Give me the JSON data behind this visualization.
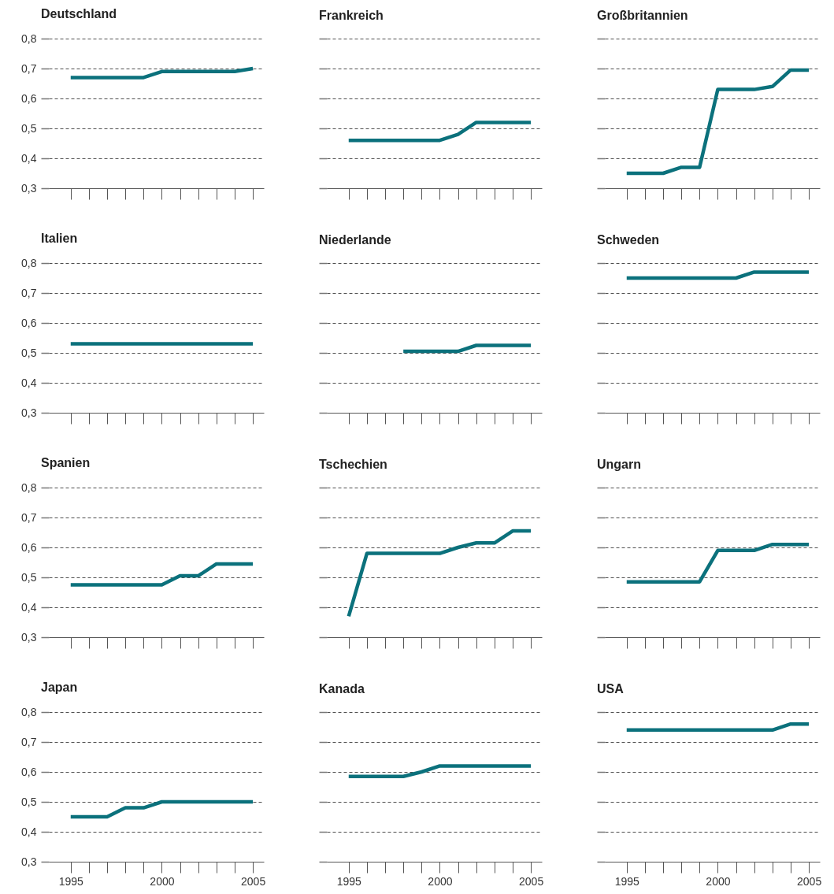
{
  "chart_data": [
    {
      "type": "line",
      "title": "Deutschland",
      "x": [
        1995,
        1996,
        1997,
        1998,
        1999,
        2000,
        2001,
        2002,
        2003,
        2004,
        2005
      ],
      "series": [
        {
          "color": "#0b717c",
          "values": [
            0.67,
            0.67,
            0.67,
            0.67,
            0.67,
            0.69,
            0.69,
            0.69,
            0.69,
            0.69,
            0.7
          ]
        }
      ],
      "xlim": [
        1993.8,
        2005.6
      ],
      "xticks": [
        1995,
        {
          "value": 1996,
          "label": null
        },
        {
          "value": 1997,
          "label": null
        },
        {
          "value": 1998,
          "label": null
        },
        {
          "value": 1999,
          "label": null
        },
        2000,
        {
          "value": 2001,
          "label": null
        },
        {
          "value": 2002,
          "label": null
        },
        {
          "value": 2003,
          "label": null
        },
        {
          "value": 2004,
          "label": null
        },
        2005
      ],
      "ylim": [
        0.3,
        0.8
      ],
      "yticks": [
        {
          "value": 0.3,
          "label": "0,3"
        },
        {
          "value": 0.4,
          "label": "0,4"
        },
        {
          "value": 0.5,
          "label": "0,5"
        },
        {
          "value": 0.6,
          "label": "0,6"
        },
        {
          "value": 0.7,
          "label": "0,7"
        },
        {
          "value": 0.8,
          "label": "0,8"
        }
      ],
      "grid": "y",
      "line_style": "solid",
      "tick_labels": "y"
    },
    {
      "type": "line",
      "title": "Frankreich",
      "x": [
        1995,
        1996,
        1997,
        1998,
        1999,
        2000,
        2001,
        2002,
        2003,
        2004,
        2005
      ],
      "series": [
        {
          "color": "#0b717c",
          "values": [
            0.46,
            0.46,
            0.46,
            0.46,
            0.46,
            0.46,
            0.48,
            0.52,
            0.52,
            0.52,
            0.52
          ]
        }
      ],
      "xlim": [
        1993.8,
        2005.6
      ],
      "xticks": [
        1995,
        {
          "value": 1996,
          "label": null
        },
        {
          "value": 1997,
          "label": null
        },
        {
          "value": 1998,
          "label": null
        },
        {
          "value": 1999,
          "label": null
        },
        2000,
        {
          "value": 2001,
          "label": null
        },
        {
          "value": 2002,
          "label": null
        },
        {
          "value": 2003,
          "label": null
        },
        {
          "value": 2004,
          "label": null
        },
        2005
      ],
      "ylim": [
        0.3,
        0.8
      ],
      "yticks": [
        {
          "value": 0.3,
          "label": null
        },
        {
          "value": 0.4,
          "label": null
        },
        {
          "value": 0.5,
          "label": null
        },
        {
          "value": 0.6,
          "label": null
        },
        {
          "value": 0.7,
          "label": null
        },
        {
          "value": 0.8,
          "label": null
        }
      ],
      "grid": "y",
      "line_style": "solid",
      "tick_labels": false
    },
    {
      "type": "line",
      "title": "Großbritannien",
      "x": [
        1995,
        1996,
        1997,
        1998,
        1999,
        2000,
        2001,
        2002,
        2003,
        2004,
        2005
      ],
      "series": [
        {
          "color": "#0b717c",
          "values": [
            0.35,
            0.35,
            0.35,
            0.37,
            0.37,
            0.63,
            0.63,
            0.63,
            0.64,
            0.695,
            0.695
          ]
        }
      ],
      "xlim": [
        1993.8,
        2005.6
      ],
      "xticks": [
        1995,
        {
          "value": 1996,
          "label": null
        },
        {
          "value": 1997,
          "label": null
        },
        {
          "value": 1998,
          "label": null
        },
        {
          "value": 1999,
          "label": null
        },
        2000,
        {
          "value": 2001,
          "label": null
        },
        {
          "value": 2002,
          "label": null
        },
        {
          "value": 2003,
          "label": null
        },
        {
          "value": 2004,
          "label": null
        },
        2005
      ],
      "ylim": [
        0.3,
        0.8
      ],
      "yticks": [
        {
          "value": 0.3,
          "label": null
        },
        {
          "value": 0.4,
          "label": null
        },
        {
          "value": 0.5,
          "label": null
        },
        {
          "value": 0.6,
          "label": null
        },
        {
          "value": 0.7,
          "label": null
        },
        {
          "value": 0.8,
          "label": null
        }
      ],
      "grid": "y",
      "line_style": "solid",
      "tick_labels": false
    },
    {
      "type": "line",
      "title": "Italien",
      "x": [
        1995,
        1996,
        1997,
        1998,
        1999,
        2000,
        2001,
        2002,
        2003,
        2004,
        2005
      ],
      "series": [
        {
          "color": "#0b717c",
          "values": [
            0.53,
            0.53,
            0.53,
            0.53,
            0.53,
            0.53,
            0.53,
            0.53,
            0.53,
            0.53,
            0.53
          ]
        }
      ],
      "xlim": [
        1993.8,
        2005.6
      ],
      "xticks": [
        1995,
        {
          "value": 1996,
          "label": null
        },
        {
          "value": 1997,
          "label": null
        },
        {
          "value": 1998,
          "label": null
        },
        {
          "value": 1999,
          "label": null
        },
        2000,
        {
          "value": 2001,
          "label": null
        },
        {
          "value": 2002,
          "label": null
        },
        {
          "value": 2003,
          "label": null
        },
        {
          "value": 2004,
          "label": null
        },
        2005
      ],
      "ylim": [
        0.3,
        0.8
      ],
      "yticks": [
        {
          "value": 0.3,
          "label": "0,3"
        },
        {
          "value": 0.4,
          "label": "0,4"
        },
        {
          "value": 0.5,
          "label": "0,5"
        },
        {
          "value": 0.6,
          "label": "0,6"
        },
        {
          "value": 0.7,
          "label": "0,7"
        },
        {
          "value": 0.8,
          "label": "0,8"
        }
      ],
      "grid": "y",
      "line_style": "solid",
      "tick_labels": "y"
    },
    {
      "type": "line",
      "title": "Niederlande",
      "x": [
        1998,
        1999,
        2000,
        2001,
        2002,
        2003,
        2004,
        2005
      ],
      "series": [
        {
          "color": "#0b717c",
          "values": [
            0.505,
            0.505,
            0.505,
            0.505,
            0.525,
            0.525,
            0.525,
            0.525
          ]
        }
      ],
      "xlim": [
        1993.8,
        2005.6
      ],
      "xticks": [
        1995,
        {
          "value": 1996,
          "label": null
        },
        {
          "value": 1997,
          "label": null
        },
        {
          "value": 1998,
          "label": null
        },
        {
          "value": 1999,
          "label": null
        },
        2000,
        {
          "value": 2001,
          "label": null
        },
        {
          "value": 2002,
          "label": null
        },
        {
          "value": 2003,
          "label": null
        },
        {
          "value": 2004,
          "label": null
        },
        2005
      ],
      "ylim": [
        0.3,
        0.8
      ],
      "yticks": [
        {
          "value": 0.3,
          "label": null
        },
        {
          "value": 0.4,
          "label": null
        },
        {
          "value": 0.5,
          "label": null
        },
        {
          "value": 0.6,
          "label": null
        },
        {
          "value": 0.7,
          "label": null
        },
        {
          "value": 0.8,
          "label": null
        }
      ],
      "grid": "y",
      "line_style": "solid",
      "tick_labels": false
    },
    {
      "type": "line",
      "title": "Schweden",
      "x": [
        1995,
        1996,
        1997,
        1998,
        1999,
        2000,
        2001,
        2002,
        2003,
        2004,
        2005
      ],
      "series": [
        {
          "color": "#0b717c",
          "values": [
            0.75,
            0.75,
            0.75,
            0.75,
            0.75,
            0.75,
            0.75,
            0.77,
            0.77,
            0.77,
            0.77
          ]
        }
      ],
      "xlim": [
        1993.8,
        2005.6
      ],
      "xticks": [
        1995,
        {
          "value": 1996,
          "label": null
        },
        {
          "value": 1997,
          "label": null
        },
        {
          "value": 1998,
          "label": null
        },
        {
          "value": 1999,
          "label": null
        },
        2000,
        {
          "value": 2001,
          "label": null
        },
        {
          "value": 2002,
          "label": null
        },
        {
          "value": 2003,
          "label": null
        },
        {
          "value": 2004,
          "label": null
        },
        2005
      ],
      "ylim": [
        0.3,
        0.8
      ],
      "yticks": [
        {
          "value": 0.3,
          "label": null
        },
        {
          "value": 0.4,
          "label": null
        },
        {
          "value": 0.5,
          "label": null
        },
        {
          "value": 0.6,
          "label": null
        },
        {
          "value": 0.7,
          "label": null
        },
        {
          "value": 0.8,
          "label": null
        }
      ],
      "grid": "y",
      "line_style": "solid",
      "tick_labels": false
    },
    {
      "type": "line",
      "title": "Spanien",
      "x": [
        1995,
        1996,
        1997,
        1998,
        1999,
        2000,
        2001,
        2002,
        2003,
        2004,
        2005
      ],
      "series": [
        {
          "color": "#0b717c",
          "values": [
            0.475,
            0.475,
            0.475,
            0.475,
            0.475,
            0.475,
            0.505,
            0.505,
            0.545,
            0.545,
            0.545
          ]
        }
      ],
      "xlim": [
        1993.8,
        2005.6
      ],
      "xticks": [
        1995,
        {
          "value": 1996,
          "label": null
        },
        {
          "value": 1997,
          "label": null
        },
        {
          "value": 1998,
          "label": null
        },
        {
          "value": 1999,
          "label": null
        },
        2000,
        {
          "value": 2001,
          "label": null
        },
        {
          "value": 2002,
          "label": null
        },
        {
          "value": 2003,
          "label": null
        },
        {
          "value": 2004,
          "label": null
        },
        2005
      ],
      "ylim": [
        0.3,
        0.8
      ],
      "yticks": [
        {
          "value": 0.3,
          "label": "0,3"
        },
        {
          "value": 0.4,
          "label": "0,4"
        },
        {
          "value": 0.5,
          "label": "0,5"
        },
        {
          "value": 0.6,
          "label": "0,6"
        },
        {
          "value": 0.7,
          "label": "0,7"
        },
        {
          "value": 0.8,
          "label": "0,8"
        }
      ],
      "grid": "y",
      "line_style": "solid",
      "tick_labels": "y"
    },
    {
      "type": "line",
      "title": "Tschechien",
      "x": [
        1995,
        1996,
        1997,
        1998,
        1999,
        2000,
        2001,
        2002,
        2003,
        2004,
        2005
      ],
      "series": [
        {
          "color": "#0b717c",
          "values": [
            0.37,
            0.58,
            0.58,
            0.58,
            0.58,
            0.58,
            0.6,
            0.615,
            0.615,
            0.655,
            0.655
          ]
        }
      ],
      "xlim": [
        1993.8,
        2005.6
      ],
      "xticks": [
        1995,
        {
          "value": 1996,
          "label": null
        },
        {
          "value": 1997,
          "label": null
        },
        {
          "value": 1998,
          "label": null
        },
        {
          "value": 1999,
          "label": null
        },
        2000,
        {
          "value": 2001,
          "label": null
        },
        {
          "value": 2002,
          "label": null
        },
        {
          "value": 2003,
          "label": null
        },
        {
          "value": 2004,
          "label": null
        },
        2005
      ],
      "ylim": [
        0.3,
        0.8
      ],
      "yticks": [
        {
          "value": 0.3,
          "label": null
        },
        {
          "value": 0.4,
          "label": null
        },
        {
          "value": 0.5,
          "label": null
        },
        {
          "value": 0.6,
          "label": null
        },
        {
          "value": 0.7,
          "label": null
        },
        {
          "value": 0.8,
          "label": null
        }
      ],
      "grid": "y",
      "line_style": "solid",
      "tick_labels": false
    },
    {
      "type": "line",
      "title": "Ungarn",
      "x": [
        1995,
        1996,
        1997,
        1998,
        1999,
        2000,
        2001,
        2002,
        2003,
        2004,
        2005
      ],
      "series": [
        {
          "color": "#0b717c",
          "values": [
            0.485,
            0.485,
            0.485,
            0.485,
            0.485,
            0.59,
            0.59,
            0.59,
            0.61,
            0.61,
            0.61
          ]
        }
      ],
      "xlim": [
        1993.8,
        2005.6
      ],
      "xticks": [
        1995,
        {
          "value": 1996,
          "label": null
        },
        {
          "value": 1997,
          "label": null
        },
        {
          "value": 1998,
          "label": null
        },
        {
          "value": 1999,
          "label": null
        },
        2000,
        {
          "value": 2001,
          "label": null
        },
        {
          "value": 2002,
          "label": null
        },
        {
          "value": 2003,
          "label": null
        },
        {
          "value": 2004,
          "label": null
        },
        2005
      ],
      "ylim": [
        0.3,
        0.8
      ],
      "yticks": [
        {
          "value": 0.3,
          "label": null
        },
        {
          "value": 0.4,
          "label": null
        },
        {
          "value": 0.5,
          "label": null
        },
        {
          "value": 0.6,
          "label": null
        },
        {
          "value": 0.7,
          "label": null
        },
        {
          "value": 0.8,
          "label": null
        }
      ],
      "grid": "y",
      "line_style": "solid",
      "tick_labels": false
    },
    {
      "type": "line",
      "title": "Japan",
      "x": [
        1995,
        1996,
        1997,
        1998,
        1999,
        2000,
        2001,
        2002,
        2003,
        2004,
        2005
      ],
      "series": [
        {
          "color": "#0b717c",
          "values": [
            0.45,
            0.45,
            0.45,
            0.48,
            0.48,
            0.5,
            0.5,
            0.5,
            0.5,
            0.5,
            0.5
          ]
        }
      ],
      "xlim": [
        1993.8,
        2005.6
      ],
      "xticks": [
        1995,
        {
          "value": 1996,
          "label": null
        },
        {
          "value": 1997,
          "label": null
        },
        {
          "value": 1998,
          "label": null
        },
        {
          "value": 1999,
          "label": null
        },
        2000,
        {
          "value": 2001,
          "label": null
        },
        {
          "value": 2002,
          "label": null
        },
        {
          "value": 2003,
          "label": null
        },
        {
          "value": 2004,
          "label": null
        },
        2005
      ],
      "ylim": [
        0.3,
        0.8
      ],
      "yticks": [
        {
          "value": 0.3,
          "label": "0,3"
        },
        {
          "value": 0.4,
          "label": "0,4"
        },
        {
          "value": 0.5,
          "label": "0,5"
        },
        {
          "value": 0.6,
          "label": "0,6"
        },
        {
          "value": 0.7,
          "label": "0,7"
        },
        {
          "value": 0.8,
          "label": "0,8"
        }
      ],
      "grid": "y",
      "line_style": "solid"
    },
    {
      "type": "line",
      "title": "Kanada",
      "x": [
        1995,
        1996,
        1997,
        1998,
        1999,
        2000,
        2001,
        2002,
        2003,
        2004,
        2005
      ],
      "series": [
        {
          "color": "#0b717c",
          "values": [
            0.585,
            0.585,
            0.585,
            0.585,
            0.6,
            0.62,
            0.62,
            0.62,
            0.62,
            0.62,
            0.62
          ]
        }
      ],
      "xlim": [
        1993.8,
        2005.6
      ],
      "xticks": [
        1995,
        {
          "value": 1996,
          "label": null
        },
        {
          "value": 1997,
          "label": null
        },
        {
          "value": 1998,
          "label": null
        },
        {
          "value": 1999,
          "label": null
        },
        2000,
        {
          "value": 2001,
          "label": null
        },
        {
          "value": 2002,
          "label": null
        },
        {
          "value": 2003,
          "label": null
        },
        {
          "value": 2004,
          "label": null
        },
        2005
      ],
      "ylim": [
        0.3,
        0.8
      ],
      "yticks": [
        {
          "value": 0.3,
          "label": null
        },
        {
          "value": 0.4,
          "label": null
        },
        {
          "value": 0.5,
          "label": null
        },
        {
          "value": 0.6,
          "label": null
        },
        {
          "value": 0.7,
          "label": null
        },
        {
          "value": 0.8,
          "label": null
        }
      ],
      "grid": "y",
      "line_style": "solid",
      "tick_labels": "x"
    },
    {
      "type": "line",
      "title": "USA",
      "x": [
        1995,
        1996,
        1997,
        1998,
        1999,
        2000,
        2001,
        2002,
        2003,
        2004,
        2005
      ],
      "series": [
        {
          "color": "#0b717c",
          "values": [
            0.74,
            0.74,
            0.74,
            0.74,
            0.74,
            0.74,
            0.74,
            0.74,
            0.74,
            0.76,
            0.76
          ]
        }
      ],
      "xlim": [
        1993.8,
        2005.6
      ],
      "xticks": [
        1995,
        {
          "value": 1996,
          "label": null
        },
        {
          "value": 1997,
          "label": null
        },
        {
          "value": 1998,
          "label": null
        },
        {
          "value": 1999,
          "label": null
        },
        2000,
        {
          "value": 2001,
          "label": null
        },
        {
          "value": 2002,
          "label": null
        },
        {
          "value": 2003,
          "label": null
        },
        {
          "value": 2004,
          "label": null
        },
        2005
      ],
      "ylim": [
        0.3,
        0.8
      ],
      "yticks": [
        {
          "value": 0.3,
          "label": null
        },
        {
          "value": 0.4,
          "label": null
        },
        {
          "value": 0.5,
          "label": null
        },
        {
          "value": 0.6,
          "label": null
        },
        {
          "value": 0.7,
          "label": null
        },
        {
          "value": 0.8,
          "label": null
        }
      ],
      "grid": "y",
      "line_style": "solid",
      "tick_labels": "x"
    }
  ]
}
